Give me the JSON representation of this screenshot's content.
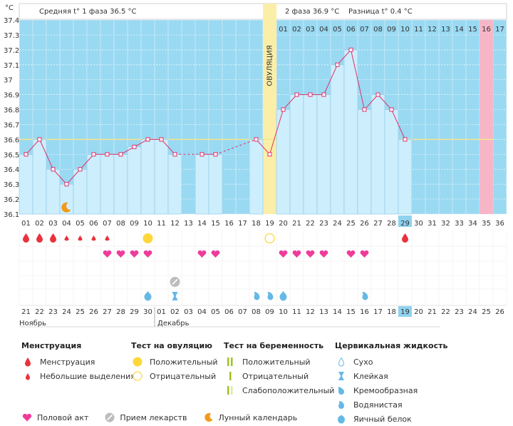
{
  "header": {
    "unit": "°C",
    "phase1_label": "Средняя t° 1 фаза",
    "phase1_value": "36.5 °C",
    "phase2_label": "2 фаза",
    "phase2_value": "36.9 °C",
    "diff_label": "Разница t°",
    "diff_value": "0.4 °C"
  },
  "chart_data": {
    "type": "line",
    "title": "",
    "ylabel": "°C",
    "ylim": [
      36.1,
      37.4
    ],
    "y_ticks": [
      "37.4",
      "37.3",
      "37.2",
      "37.1",
      "37",
      "36.9",
      "36.8",
      "36.7",
      "36.6",
      "36.5",
      "36.4",
      "36.3",
      "36.2",
      "36.1"
    ],
    "cycle_days": [
      "01",
      "02",
      "03",
      "04",
      "05",
      "06",
      "07",
      "08",
      "09",
      "10",
      "11",
      "12",
      "13",
      "14",
      "15",
      "16",
      "17",
      "18",
      "19",
      "20",
      "21",
      "22",
      "23",
      "24",
      "25",
      "26",
      "27",
      "28",
      "29",
      "30",
      "31",
      "32",
      "33",
      "34",
      "35",
      "36"
    ],
    "dates": [
      "21",
      "22",
      "23",
      "24",
      "25",
      "26",
      "27",
      "28",
      "29",
      "30",
      "01",
      "02",
      "03",
      "04",
      "05",
      "06",
      "07",
      "08",
      "09",
      "10",
      "11",
      "12",
      "13",
      "14",
      "15",
      "16",
      "17",
      "18",
      "19",
      "20",
      "21",
      "22",
      "23",
      "24",
      "25",
      "26"
    ],
    "date_red": [
      true,
      true,
      false,
      false,
      false,
      false,
      false,
      true,
      true,
      false,
      false,
      false,
      false,
      false,
      true,
      true,
      false,
      false,
      false,
      false,
      false,
      true,
      true,
      false,
      false,
      false,
      false,
      false,
      false,
      true,
      false,
      false,
      false,
      false,
      false,
      true
    ],
    "months": [
      "Ноябрь",
      "Декабрь"
    ],
    "temperatures": [
      36.5,
      36.6,
      36.4,
      36.3,
      36.4,
      36.5,
      36.5,
      36.5,
      36.55,
      36.6,
      36.6,
      36.5,
      null,
      36.5,
      36.5,
      null,
      null,
      36.6,
      36.5,
      36.8,
      36.9,
      36.9,
      36.9,
      37.1,
      37.2,
      36.8,
      36.9,
      36.8,
      36.6,
      null,
      null,
      null,
      null,
      null,
      null,
      null
    ],
    "bar_days": [
      1,
      2,
      3,
      4,
      5,
      6,
      7,
      8,
      9,
      10,
      11,
      12,
      13,
      14,
      15,
      18,
      20,
      21,
      22,
      23,
      24,
      25,
      26,
      27,
      28,
      29
    ],
    "gap_dashed": [
      [
        12,
        14
      ],
      [
        15,
        18
      ]
    ],
    "coverline": 36.6,
    "ovulation_day": 19,
    "ovulation_label": "ОВУЛЯЦИЯ",
    "post_ovulation_days": [
      "01",
      "02",
      "03",
      "04",
      "05",
      "06",
      "07",
      "08",
      "09",
      "10",
      "11",
      "12",
      "13",
      "14",
      "15",
      "16",
      "17"
    ],
    "highlight_post_day": 16,
    "today_day": 29,
    "moon_day": 4
  },
  "symbols": {
    "menstruation": [
      1,
      2,
      3
    ],
    "spotting": [
      4,
      5,
      6,
      7
    ],
    "menstruation_late": [
      29
    ],
    "ovulation_positive": [
      10
    ],
    "ovulation_negative": [
      19
    ],
    "intercourse": [
      7,
      8,
      9,
      10,
      14,
      15,
      20,
      21,
      22,
      23,
      25,
      26
    ],
    "medication": [
      12
    ],
    "fluid_eggwhite": [
      10,
      20
    ],
    "fluid_sticky": [
      12
    ],
    "fluid_watery": [
      18,
      19,
      20,
      26
    ],
    "fluid_creamy": []
  },
  "legend": {
    "menstruation_title": "Менструация",
    "menstruation": "Менструация",
    "spotting": "Небольшие выделения",
    "ovtest_title": "Тест на овуляцию",
    "ov_positive": "Положительный",
    "ov_negative": "Отрицательный",
    "pregtest_title": "Тест на беременность",
    "preg_positive": "Положительный",
    "preg_negative": "Отрицательный",
    "preg_weak": "Слабоположительный",
    "fluid_title": "Цервикальная жидкость",
    "fluid_dry": "Сухо",
    "fluid_sticky": "Клейкая",
    "fluid_creamy": "Кремообразная",
    "fluid_watery": "Водянистая",
    "fluid_eggwhite": "Яичный белок",
    "intercourse": "Половой акт",
    "medication": "Прием лекарств",
    "moon": "Лунный календарь"
  },
  "colors": {
    "plot_bg": "#9ad9f2",
    "bar_fill": "#cdeefc",
    "bar_stroke": "#8bc7e6",
    "line": "#e0306b",
    "ovulation": "#fbeea8",
    "pink_day": "#f6b6c8",
    "today": "#8fd3ef",
    "drop_red": "#e8323c",
    "heart": "#ee3c9a",
    "sun": "#fdd73c",
    "fluid_blue": "#66b8e6",
    "moon": "#f29a18",
    "date_red": "#e0222e"
  }
}
